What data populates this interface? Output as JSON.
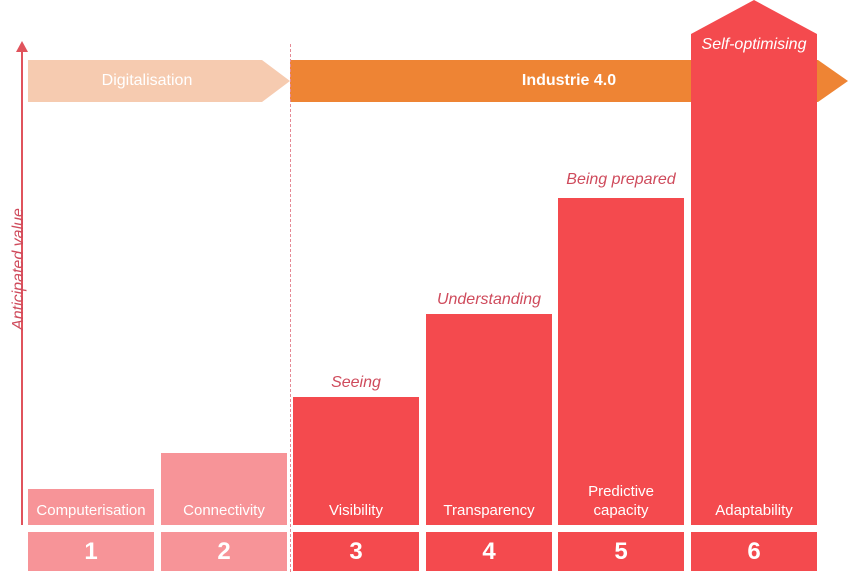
{
  "axis": {
    "y_label": "Anticipated value"
  },
  "arrows": {
    "digitalisation": "Digitalisation",
    "industrie": "Industrie 4.0"
  },
  "stages": [
    {
      "number": "1",
      "label": "Computerisation",
      "caption": "",
      "value": 1
    },
    {
      "number": "2",
      "label": "Connectivity",
      "caption": "",
      "value": 2
    },
    {
      "number": "3",
      "label": "Visibility",
      "caption": "Seeing",
      "value": 3
    },
    {
      "number": "4",
      "label": "Transparency",
      "caption": "Understanding",
      "value": 4
    },
    {
      "number": "5",
      "label": "Predictive capacity",
      "caption": "Being prepared",
      "value": 5
    },
    {
      "number": "6",
      "label": "Adaptability",
      "caption": "Self-optimising",
      "value": 6
    }
  ],
  "colors": {
    "digitalisation_phase": "#f79498",
    "industrie_phase": "#f44a4e",
    "digitalisation_arrow": "#f6cbb0",
    "industrie_arrow": "#ee8434",
    "caption_text": "#cf4b5c"
  }
}
